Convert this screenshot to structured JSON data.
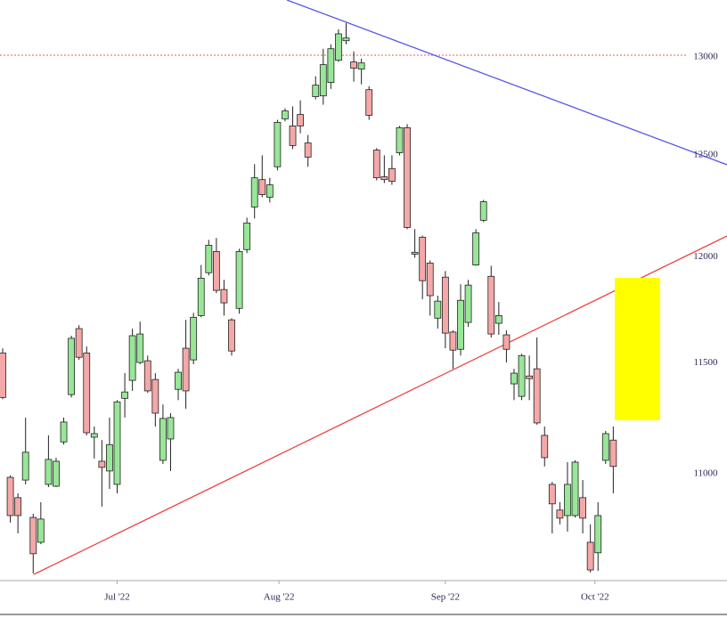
{
  "chart_data": {
    "type": "candlestick",
    "x": [
      0,
      1,
      2,
      3,
      4,
      5,
      6,
      7,
      8,
      9,
      10,
      11,
      12,
      13,
      14,
      15,
      16,
      17,
      18,
      19,
      20,
      21,
      22,
      23,
      24,
      25,
      26,
      27,
      28,
      29,
      30,
      31,
      32,
      33,
      34,
      35,
      36,
      37,
      38,
      39,
      40,
      41,
      42,
      43,
      44,
      45,
      46,
      47,
      48,
      49,
      50,
      51,
      52,
      53,
      54,
      55,
      56,
      57,
      58,
      59,
      60,
      61,
      62,
      63,
      64,
      65,
      66,
      67,
      68,
      69,
      70,
      71,
      72,
      73,
      74,
      75,
      76,
      77,
      78,
      79,
      80
    ],
    "open": [
      11542,
      10981,
      10892,
      10969,
      10806,
      10699,
      10950,
      10942,
      11138,
      11351,
      11655,
      11542,
      11159,
      11052,
      11009,
      10950,
      11334,
      11416,
      11498,
      11506,
      11420,
      11056,
      11151,
      11375,
      11564,
      11510,
      11716,
      11919,
      12021,
      11839,
      11696,
      11750,
      12030,
      12237,
      12372,
      12285,
      12436,
      12677,
      12641,
      12699,
      12555,
      12790,
      12794,
      12863,
      12978,
      13080,
      12969,
      12932,
      12826,
      12519,
      12386,
      12427,
      12506,
      12632,
      12017,
      12090,
      11965,
      11704,
      11898,
      11639,
      11559,
      11684,
      11956,
      12172,
      11902,
      11680,
      11626,
      11400,
      11343,
      11436,
      11469,
      11167,
      10950,
      10838,
      10814,
      10814,
      10892,
      10699,
      10654,
      11056,
      11146
    ],
    "high": [
      11563,
      10989,
      10911,
      11247,
      10822,
      10872,
      11167,
      11068,
      11247,
      11622,
      11671,
      11572,
      11207,
      11146,
      11247,
      11326,
      11449,
      11655,
      11688,
      11530,
      11449,
      11306,
      11267,
      11469,
      11696,
      11729,
      11956,
      12077,
      12086,
      11885,
      11704,
      12034,
      12185,
      12449,
      12493,
      12381,
      12672,
      12731,
      12740,
      12771,
      12595,
      12895,
      13038,
      13061,
      13140,
      13173,
      13024,
      12987,
      12844,
      12529,
      12493,
      12493,
      12641,
      12650,
      12129,
      12098,
      11978,
      11810,
      11927,
      11647,
      11864,
      11885,
      12129,
      12272,
      11952,
      11780,
      11647,
      11469,
      11538,
      11530,
      11614,
      11207,
      10961,
      10872,
      11048,
      11056,
      10969,
      10776,
      10872,
      11187,
      11207
    ],
    "low": [
      11330,
      10784,
      10737,
      10950,
      10566,
      10691,
      10938,
      10938,
      11126,
      11338,
      11510,
      11167,
      11064,
      10853,
      10930,
      10911,
      11247,
      11368,
      11490,
      11359,
      11207,
      11040,
      11009,
      11326,
      11287,
      11490,
      11708,
      11906,
      11822,
      11716,
      11530,
      11725,
      12013,
      12181,
      12285,
      12259,
      12418,
      12664,
      12524,
      12604,
      12436,
      12776,
      12749,
      12830,
      12969,
      13061,
      12867,
      12853,
      12672,
      12368,
      12355,
      12346,
      12493,
      12129,
      11991,
      11793,
      11716,
      11655,
      11564,
      11469,
      11530,
      11663,
      11952,
      12163,
      11614,
      11626,
      11498,
      11326,
      11326,
      11326,
      11215,
      11029,
      10737,
      10776,
      10745,
      10806,
      10737,
      10570,
      10577,
      11040,
      10911
    ],
    "close": [
      11338,
      10814,
      10814,
      11092,
      10650,
      10799,
      11060,
      11052,
      11227,
      11610,
      11522,
      11179,
      11175,
      11025,
      11126,
      11318,
      11363,
      11622,
      11630,
      11368,
      11267,
      11243,
      11247,
      11453,
      11368,
      11708,
      11893,
      12051,
      11835,
      11776,
      11551,
      12021,
      12159,
      12381,
      12298,
      12346,
      12659,
      12717,
      12542,
      12641,
      12484,
      12849,
      12955,
      13038,
      13116,
      13094,
      12937,
      12964,
      12695,
      12381,
      12372,
      12364,
      12632,
      12137,
      12008,
      11881,
      11810,
      11784,
      11634,
      11555,
      11788,
      11860,
      12111,
      12263,
      11630,
      11716,
      11559,
      11449,
      11530,
      11424,
      11223,
      11068,
      10865,
      10803,
      10950,
      11048,
      10803,
      10581,
      10814,
      11175,
      11029
    ],
    "up_color": "#98e698",
    "down_color": "#f4a8a8",
    "log_scale": true,
    "xlim": [
      -0.35,
      94.9
    ],
    "ylim": [
      10536,
      13295
    ],
    "xticks": [
      {
        "value": 15,
        "label": "Jul '22"
      },
      {
        "value": 36.2,
        "label": "Aug '22"
      },
      {
        "value": 58,
        "label": "Sep '22"
      },
      {
        "value": 77.6,
        "label": "Oct '22"
      }
    ],
    "yticks": [
      11000,
      11500,
      12000,
      12500,
      13000
    ]
  }
}
